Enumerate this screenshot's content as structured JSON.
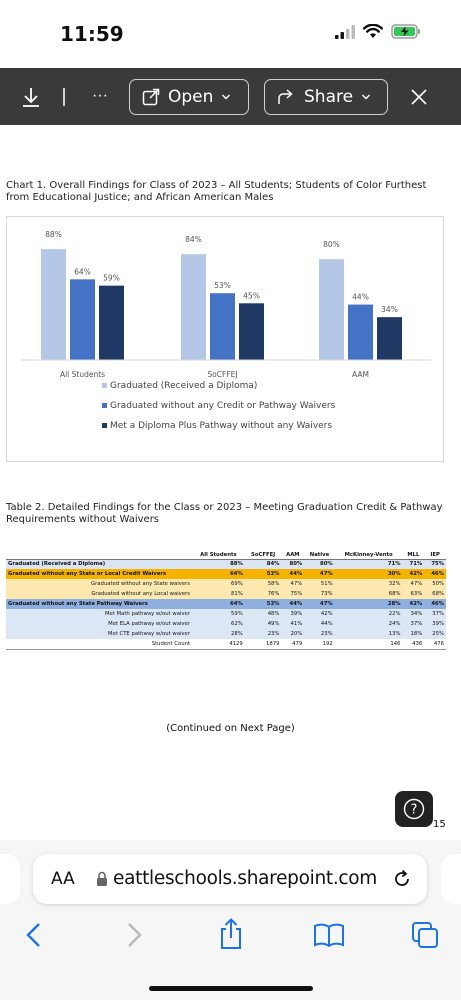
{
  "status": {
    "time": "11:59"
  },
  "toolbar": {
    "open_label": "Open",
    "share_label": "Share",
    "more_label": "···"
  },
  "chart_caption": "Chart 1. Overall Findings for Class of 2023 – All Students; Students of Color Furthest from Educational Justice; and African American Males",
  "chart_data": {
    "type": "bar",
    "categories": [
      "All Students",
      "SoCFFEJ",
      "AAM"
    ],
    "series": [
      {
        "name": "Graduated (Received a Diploma)",
        "values": [
          88,
          84,
          80
        ],
        "color": "#b4c7e7"
      },
      {
        "name": "Graduated without any Credit or Pathway Waivers",
        "values": [
          64,
          53,
          44
        ],
        "color": "#4472c4"
      },
      {
        "name": "Met a Diploma Plus Pathway without any Waivers",
        "values": [
          59,
          45,
          34
        ],
        "color": "#203864"
      }
    ],
    "data_labels": [
      "88%",
      "64%",
      "59%",
      "84%",
      "53%",
      "45%",
      "80%",
      "44%",
      "34%"
    ],
    "ylim": [
      0,
      100
    ],
    "legend_position": "bottom"
  },
  "table_caption": "Table 2. Detailed Findings for the Class or 2023 – Meeting Graduation Credit & Pathway Requirements without Waivers",
  "table": {
    "headers": [
      "All Students",
      "SoCFFEJ",
      "AAM",
      "Native",
      "McKinney-Vento",
      "MLL",
      "IEP"
    ],
    "rows": [
      {
        "label": "Graduated (Received a Diploma)",
        "values": [
          "88%",
          "84%",
          "80%",
          "80%",
          "71%",
          "71%",
          "75%"
        ]
      },
      {
        "label": "Graduated without any State or Local Credit Waivers",
        "values": [
          "64%",
          "53%",
          "44%",
          "47%",
          "30%",
          "42%",
          "46%"
        ]
      },
      {
        "label": "Graduated without any State waivers",
        "values": [
          "69%",
          "58%",
          "47%",
          "51%",
          "32%",
          "47%",
          "50%"
        ]
      },
      {
        "label": "Graduated without any Local waivers",
        "values": [
          "81%",
          "76%",
          "75%",
          "73%",
          "68%",
          "63%",
          "68%"
        ]
      },
      {
        "label": "Graduated without any State Pathway Waivers",
        "values": [
          "64%",
          "53%",
          "44%",
          "47%",
          "28%",
          "42%",
          "46%"
        ]
      },
      {
        "label": "Met Math pathway w/out waiver",
        "values": [
          "59%",
          "48%",
          "39%",
          "42%",
          "22%",
          "34%",
          "37%"
        ]
      },
      {
        "label": "Met ELA pathway w/out waiver",
        "values": [
          "62%",
          "49%",
          "41%",
          "44%",
          "24%",
          "37%",
          "39%"
        ]
      },
      {
        "label": "Met CTE pathway w/out waiver",
        "values": [
          "28%",
          "23%",
          "20%",
          "23%",
          "13%",
          "18%",
          "25%"
        ]
      },
      {
        "label": "Student Count",
        "values": [
          "4129",
          "1879",
          "479",
          "192",
          "146",
          "436",
          "476"
        ]
      }
    ]
  },
  "continued_text": "(Continued on Next Page)",
  "page_number": "15",
  "help_icon_text": "?",
  "browser": {
    "aa_label": "AA",
    "url": "eattleschools.sharepoint.com"
  }
}
